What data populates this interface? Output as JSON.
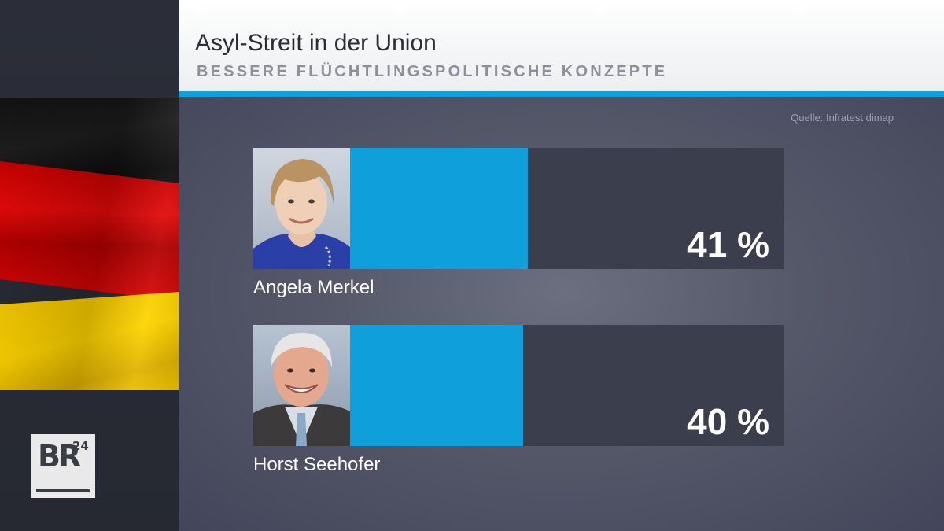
{
  "header": {
    "title": "Asyl-Streit in der Union",
    "subtitle": "BESSERE FLÜCHTLINGSPOLITISCHE KONZEPTE"
  },
  "source": "Quelle: Infratest dimap",
  "logo": {
    "text": "BR",
    "superscript": "24"
  },
  "colors": {
    "accent": "#0e9fdd",
    "bar_fill": "#0f9fdb",
    "bar_track": "#3b3e4c"
  },
  "chart_data": {
    "type": "bar",
    "orientation": "horizontal",
    "categories": [
      "Angela Merkel",
      "Horst Seehofer"
    ],
    "values": [
      41,
      40
    ],
    "value_labels": [
      "41 %",
      "40 %"
    ],
    "unit": "%",
    "xlim": [
      0,
      100
    ],
    "title": "Asyl-Streit in der Union",
    "subtitle": "BESSERE FLÜCHTLINGSPOLITISCHE KONZEPTE",
    "grid": false,
    "legend": "none"
  }
}
